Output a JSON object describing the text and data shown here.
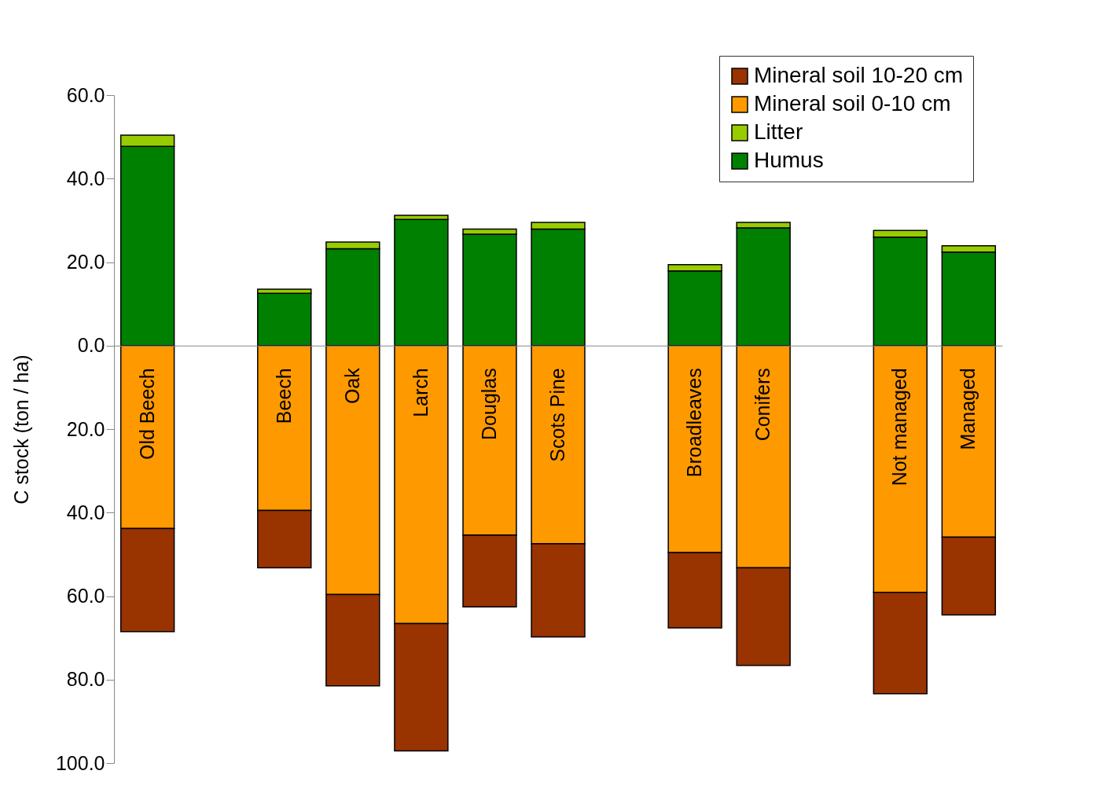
{
  "chart_data": {
    "type": "bar",
    "stacked": true,
    "ylabel": "C stock (ton / ha)",
    "categories": [
      "Old Beech",
      null,
      "Beech",
      "Oak",
      "Larch",
      "Douglas",
      "Scots Pine",
      null,
      "Broadleaves",
      "Conifers",
      null,
      "Not managed",
      "Managed"
    ],
    "series": [
      {
        "name": "Humus",
        "color": "#008000",
        "values": [
          47.7,
          null,
          12.5,
          23.2,
          30.2,
          26.7,
          27.9,
          null,
          17.9,
          28.2,
          null,
          26.0,
          22.4
        ]
      },
      {
        "name": "Litter",
        "color": "#99cc00",
        "values": [
          2.7,
          null,
          1.0,
          1.6,
          1.0,
          1.2,
          1.6,
          null,
          1.5,
          1.3,
          null,
          1.6,
          1.5
        ]
      },
      {
        "name": "Mineral soil 0-10 cm",
        "color": "#ff9900",
        "values": [
          -43.8,
          null,
          -39.5,
          -59.6,
          -66.6,
          -45.4,
          -47.5,
          null,
          -49.6,
          -53.2,
          null,
          -59.1,
          -45.9
        ]
      },
      {
        "name": "Mineral soil 10-20 cm",
        "color": "#993300",
        "values": [
          -24.7,
          null,
          -13.7,
          -21.9,
          -30.5,
          -17.2,
          -22.3,
          null,
          -18.0,
          -23.4,
          null,
          -24.3,
          -18.6
        ]
      }
    ],
    "ylim": [
      -100,
      60
    ],
    "yticks": [
      {
        "value": -100,
        "label": "100.0"
      },
      {
        "value": -80,
        "label": "80.0"
      },
      {
        "value": -60,
        "label": "60.0"
      },
      {
        "value": -40,
        "label": "40.0"
      },
      {
        "value": -20,
        "label": "20.0"
      },
      {
        "value": 0,
        "label": "0.0"
      },
      {
        "value": 20,
        "label": "20.0"
      },
      {
        "value": 40,
        "label": "40.0"
      },
      {
        "value": 60,
        "label": "60.0"
      }
    ],
    "grid": false,
    "legend": "top right"
  }
}
